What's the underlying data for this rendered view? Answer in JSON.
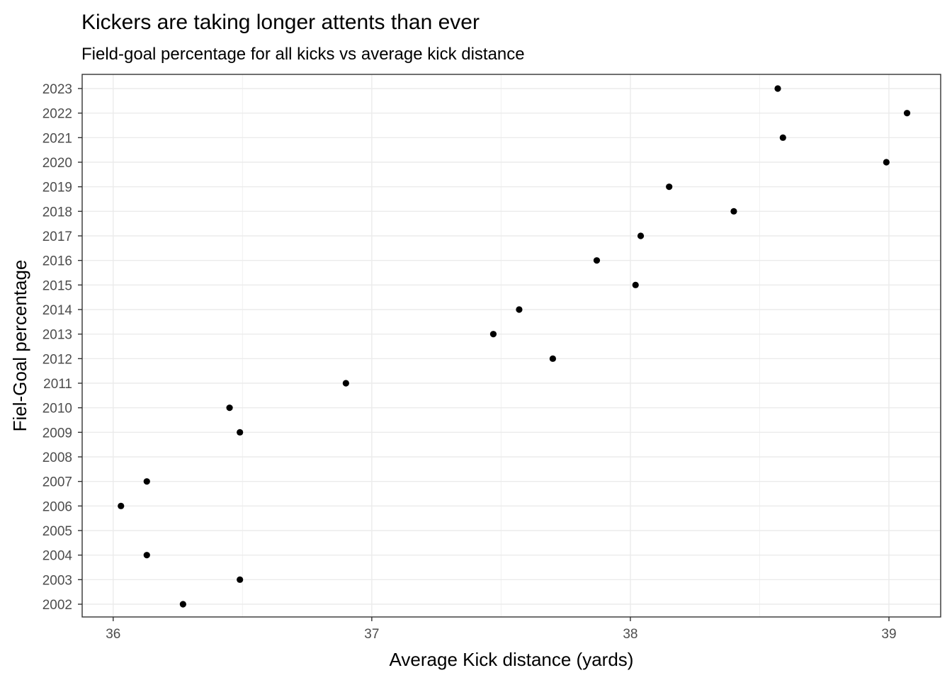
{
  "chart_data": {
    "type": "scatter",
    "title": "Kickers are taking longer attents than ever",
    "subtitle": "Field-goal percentage for all kicks vs average kick distance",
    "xlabel": "Average Kick distance (yards)",
    "ylabel": "Fiel-Goal percentage",
    "xlim": [
      35.88,
      39.2
    ],
    "x_ticks": [
      36,
      37,
      38,
      39
    ],
    "y_categories": [
      "2002",
      "2003",
      "2004",
      "2005",
      "2006",
      "2007",
      "2008",
      "2009",
      "2010",
      "2011",
      "2012",
      "2013",
      "2014",
      "2015",
      "2016",
      "2017",
      "2018",
      "2019",
      "2020",
      "2021",
      "2022",
      "2023"
    ],
    "grid": true,
    "legend": "none",
    "point_color": "#000000",
    "points": [
      {
        "x": 36.27,
        "y": "2002"
      },
      {
        "x": 36.49,
        "y": "2003"
      },
      {
        "x": 36.13,
        "y": "2004"
      },
      {
        "x": 36.03,
        "y": "2006"
      },
      {
        "x": 36.13,
        "y": "2007"
      },
      {
        "x": 36.49,
        "y": "2009"
      },
      {
        "x": 36.45,
        "y": "2010"
      },
      {
        "x": 36.9,
        "y": "2011"
      },
      {
        "x": 37.7,
        "y": "2012"
      },
      {
        "x": 37.47,
        "y": "2013"
      },
      {
        "x": 37.57,
        "y": "2014"
      },
      {
        "x": 38.02,
        "y": "2015"
      },
      {
        "x": 37.87,
        "y": "2016"
      },
      {
        "x": 38.04,
        "y": "2017"
      },
      {
        "x": 38.4,
        "y": "2018"
      },
      {
        "x": 38.15,
        "y": "2019"
      },
      {
        "x": 38.99,
        "y": "2020"
      },
      {
        "x": 38.59,
        "y": "2021"
      },
      {
        "x": 39.07,
        "y": "2022"
      },
      {
        "x": 38.57,
        "y": "2023"
      }
    ]
  }
}
